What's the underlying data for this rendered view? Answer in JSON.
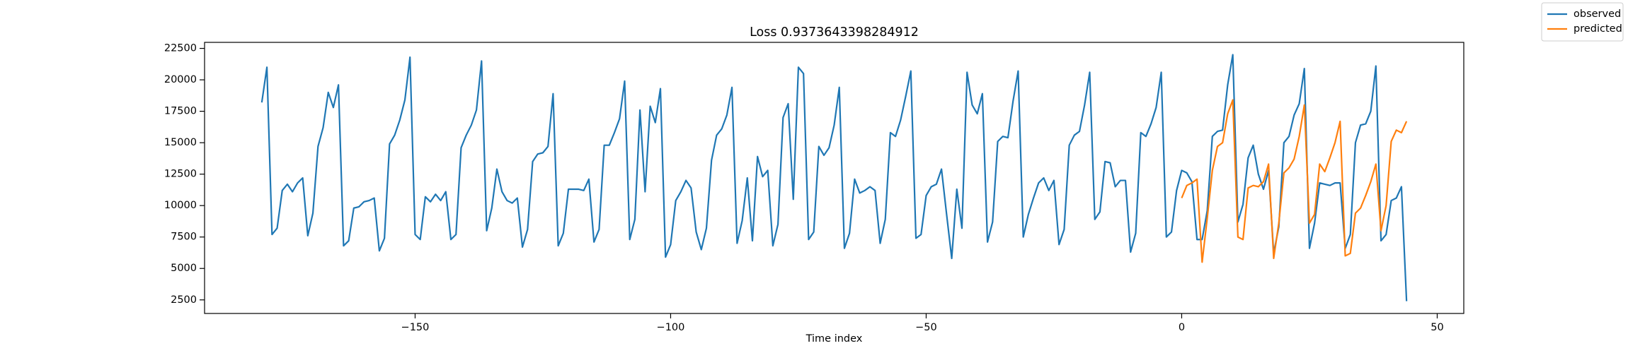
{
  "chart_data": {
    "type": "line",
    "title": "Loss 0.9373643398284912",
    "x_label": "Time index",
    "xlim": [
      -191.2,
      55.2
    ],
    "ylim": [
      1420,
      22980
    ],
    "xticks": [
      {
        "value": -150,
        "label": "−150"
      },
      {
        "value": -100,
        "label": "−100"
      },
      {
        "value": -50,
        "label": "−50"
      },
      0,
      50
    ],
    "yticks": [
      2500,
      5000,
      7500,
      10000,
      12500,
      15000,
      17500,
      20000,
      22500
    ],
    "grid": false,
    "legend": "upper right",
    "series": [
      {
        "name": "observed",
        "color": "#1f77b4",
        "x": [
          -180,
          -179,
          -178,
          -177,
          -176,
          -175,
          -174,
          -173,
          -172,
          -171,
          -170,
          -169,
          -168,
          -167,
          -166,
          -165,
          -164,
          -163,
          -162,
          -161,
          -160,
          -159,
          -158,
          -157,
          -156,
          -155,
          -154,
          -153,
          -152,
          -151,
          -150,
          -149,
          -148,
          -147,
          -146,
          -145,
          -144,
          -143,
          -142,
          -141,
          -140,
          -139,
          -138,
          -137,
          -136,
          -135,
          -134,
          -133,
          -132,
          -131,
          -130,
          -129,
          -128,
          -127,
          -126,
          -125,
          -124,
          -123,
          -122,
          -121,
          -120,
          -119,
          -118,
          -117,
          -116,
          -115,
          -114,
          -113,
          -112,
          -111,
          -110,
          -109,
          -108,
          -107,
          -106,
          -105,
          -104,
          -103,
          -102,
          -101,
          -100,
          -99,
          -98,
          -97,
          -96,
          -95,
          -94,
          -93,
          -92,
          -91,
          -90,
          -89,
          -88,
          -87,
          -86,
          -85,
          -84,
          -83,
          -82,
          -81,
          -80,
          -79,
          -78,
          -77,
          -76,
          -75,
          -74,
          -73,
          -72,
          -71,
          -70,
          -69,
          -68,
          -67,
          -66,
          -65,
          -64,
          -63,
          -62,
          -61,
          -60,
          -59,
          -58,
          -57,
          -56,
          -55,
          -54,
          -53,
          -52,
          -51,
          -50,
          -49,
          -48,
          -47,
          -46,
          -45,
          -44,
          -43,
          -42,
          -41,
          -40,
          -39,
          -38,
          -37,
          -36,
          -35,
          -34,
          -33,
          -32,
          -31,
          -30,
          -29,
          -28,
          -27,
          -26,
          -25,
          -24,
          -23,
          -22,
          -21,
          -20,
          -19,
          -18,
          -17,
          -16,
          -15,
          -14,
          -13,
          -12,
          -11,
          -10,
          -9,
          -8,
          -7,
          -6,
          -5,
          -4,
          -3,
          -2,
          -1,
          0,
          1,
          2,
          3,
          4,
          5,
          6,
          7,
          8,
          9,
          10,
          11,
          12,
          13,
          14,
          15,
          16,
          17,
          18,
          19,
          20,
          21,
          22,
          23,
          24,
          25,
          26,
          27,
          28,
          29,
          30,
          31,
          32,
          33,
          34,
          35,
          36,
          37,
          38,
          39,
          40,
          41,
          42,
          43,
          44
        ],
        "values": [
          18200,
          21000,
          7700,
          8200,
          11200,
          11700,
          11100,
          11800,
          12200,
          7600,
          9400,
          14700,
          16200,
          19000,
          17800,
          19600,
          6800,
          7200,
          9800,
          9900,
          10300,
          10400,
          10600,
          6400,
          7400,
          14900,
          15600,
          16800,
          18400,
          21800,
          7700,
          7300,
          10700,
          10300,
          10900,
          10400,
          11100,
          7300,
          7700,
          14600,
          15600,
          16400,
          17600,
          21500,
          8000,
          9800,
          12900,
          11100,
          10400,
          10200,
          10600,
          6700,
          8100,
          13500,
          14100,
          14200,
          14700,
          18900,
          6800,
          7800,
          11300,
          11300,
          11300,
          11200,
          12100,
          7100,
          8100,
          14800,
          14800,
          15800,
          16900,
          19900,
          7300,
          8900,
          17600,
          11100,
          17900,
          16600,
          19300,
          5900,
          6900,
          10400,
          11100,
          12000,
          11400,
          7900,
          6500,
          8200,
          13600,
          15600,
          16100,
          17200,
          19400,
          7000,
          8800,
          12200,
          7200,
          13900,
          12300,
          12800,
          6800,
          8500,
          17000,
          18100,
          10500,
          21000,
          20500,
          7300,
          7900,
          14700,
          14000,
          14600,
          16400,
          19400,
          6600,
          7800,
          12100,
          11000,
          11200,
          11500,
          11200,
          7000,
          8900,
          15800,
          15500,
          16800,
          18700,
          20700,
          7400,
          7700,
          10800,
          11500,
          11700,
          12900,
          9300,
          5800,
          11300,
          8200,
          20600,
          18000,
          17300,
          18900,
          7100,
          8700,
          15100,
          15500,
          15400,
          18300,
          20700,
          7500,
          9300,
          10600,
          11800,
          12200,
          11200,
          12000,
          6900,
          8100,
          14800,
          15600,
          15900,
          18000,
          20600,
          8900,
          9500,
          13500,
          13400,
          11500,
          12000,
          12000,
          6300,
          7800,
          15800,
          15500,
          16500,
          17800,
          20600,
          7500,
          7900,
          11200,
          12800,
          12600,
          11900,
          7300,
          7300,
          9600,
          15500,
          15900,
          16000,
          19600,
          22000,
          8700,
          10100,
          13800,
          14800,
          12500,
          11300,
          12800,
          6200,
          8300,
          15000,
          15500,
          17200,
          18100,
          20900,
          6600,
          8600,
          11800,
          11700,
          11600,
          11800,
          11800,
          6600,
          7700,
          15000,
          16400,
          16500,
          17500,
          21100,
          7200,
          7700,
          10400,
          10600,
          11500,
          2400
        ]
      },
      {
        "name": "predicted",
        "color": "#ff7f0e",
        "x": [
          0,
          1,
          2,
          3,
          4,
          5,
          6,
          7,
          8,
          9,
          10,
          11,
          12,
          13,
          14,
          15,
          16,
          17,
          18,
          19,
          20,
          21,
          22,
          23,
          24,
          25,
          26,
          27,
          28,
          29,
          30,
          31,
          32,
          33,
          34,
          35,
          36,
          37,
          38,
          39,
          40,
          41,
          42,
          43,
          44
        ],
        "values": [
          10600,
          11600,
          11800,
          12100,
          5500,
          9000,
          12800,
          14700,
          15000,
          17300,
          18400,
          7500,
          7300,
          11400,
          11600,
          11500,
          11900,
          13300,
          5800,
          8600,
          12600,
          13000,
          13700,
          15500,
          18000,
          8600,
          9300,
          13300,
          12700,
          13800,
          15000,
          16700,
          6000,
          6200,
          9400,
          9800,
          10800,
          11900,
          13300,
          8000,
          10000,
          15100,
          16000,
          15800,
          16700
        ]
      }
    ]
  }
}
